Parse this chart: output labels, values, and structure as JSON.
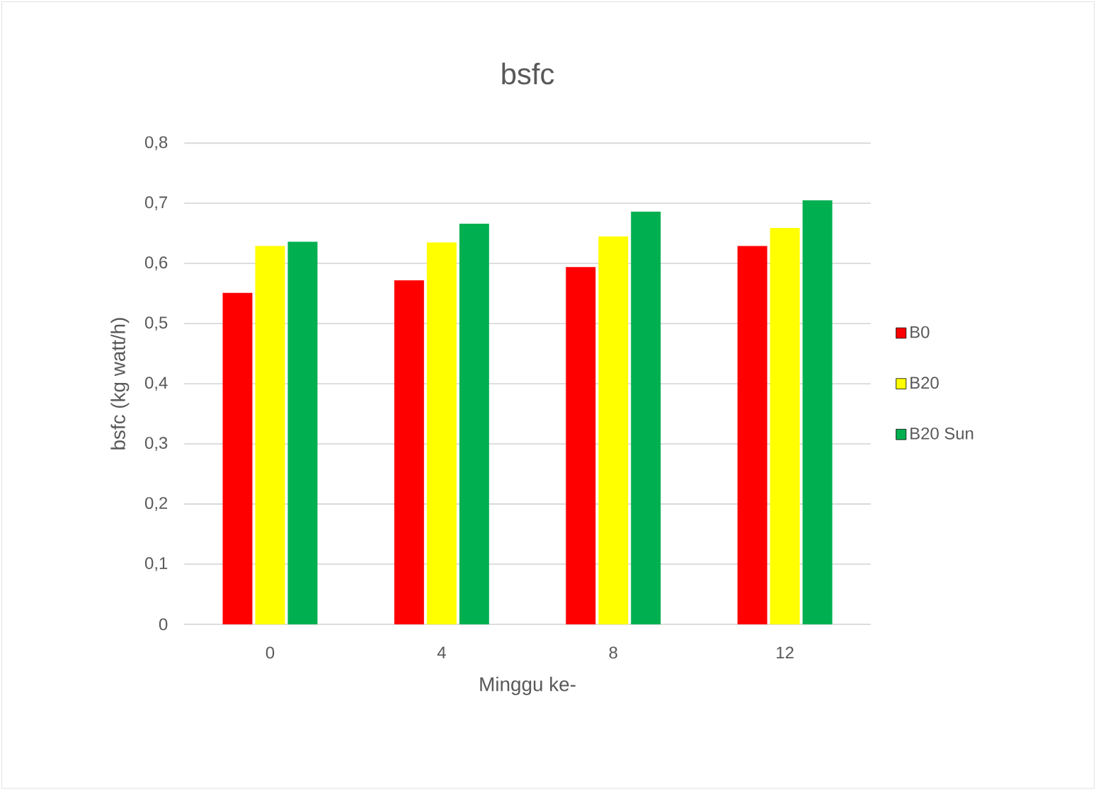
{
  "chart_data": {
    "type": "bar",
    "title": "bsfc",
    "xlabel": "Minggu ke-",
    "ylabel": "bsfc (kg watt/h)",
    "categories": [
      "0",
      "4",
      "8",
      "12"
    ],
    "series": [
      {
        "name": "B0",
        "color": "#ff0000",
        "values": [
          0.551,
          0.572,
          0.594,
          0.629
        ]
      },
      {
        "name": "B20",
        "color": "#ffff00",
        "values": [
          0.629,
          0.635,
          0.645,
          0.659
        ]
      },
      {
        "name": "B20 Sun",
        "color": "#00b050",
        "values": [
          0.636,
          0.666,
          0.686,
          0.705
        ]
      }
    ],
    "ylim": [
      0,
      0.8
    ],
    "yticks": [
      {
        "value": 0,
        "label": "0"
      },
      {
        "value": 0.1,
        "label": "0,1"
      },
      {
        "value": 0.2,
        "label": "0,2"
      },
      {
        "value": 0.3,
        "label": "0,3"
      },
      {
        "value": 0.4,
        "label": "0,4"
      },
      {
        "value": 0.5,
        "label": "0,5"
      },
      {
        "value": 0.6,
        "label": "0,6"
      },
      {
        "value": 0.7,
        "label": "0,7"
      },
      {
        "value": 0.8,
        "label": "0,8"
      }
    ],
    "grid": "y",
    "legend": "right"
  }
}
